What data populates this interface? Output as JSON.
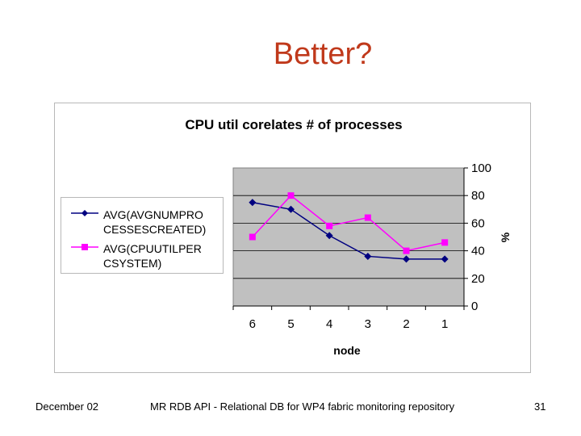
{
  "slide": {
    "title": "Better?",
    "footer_left": "December 02",
    "footer_center": "MR RDB API - Relational DB for WP4 fabric monitoring repository",
    "page_number": "31"
  },
  "colors": {
    "series1": "#000080",
    "series2": "#ff00ff",
    "plot_bg": "#c0c0c0",
    "title_color": "#c0391b"
  },
  "chart_data": {
    "type": "line",
    "title": "CPU util corelates # of processes",
    "xlabel": "node",
    "ylabel": "%",
    "categories": [
      "6",
      "5",
      "4",
      "3",
      "2",
      "1"
    ],
    "ylim": [
      0,
      100
    ],
    "yticks": [
      "0",
      "20",
      "40",
      "60",
      "80",
      "100"
    ],
    "grid": true,
    "legend_position": "left",
    "series": [
      {
        "name": "AVG(AVGNUMPROCESSESCREATED)",
        "name_line1": "AVG(AVGNUMPRO",
        "name_line2": "CESSESCREATED)",
        "marker": "diamond",
        "values": [
          75,
          70,
          51,
          36,
          34,
          34
        ]
      },
      {
        "name": "AVG(CPUUTILPERCSYSTEM)",
        "name_line1": "AVG(CPUUTILPER",
        "name_line2": "CSYSTEM)",
        "marker": "square",
        "values": [
          50,
          80,
          58,
          64,
          40,
          46
        ]
      }
    ]
  }
}
